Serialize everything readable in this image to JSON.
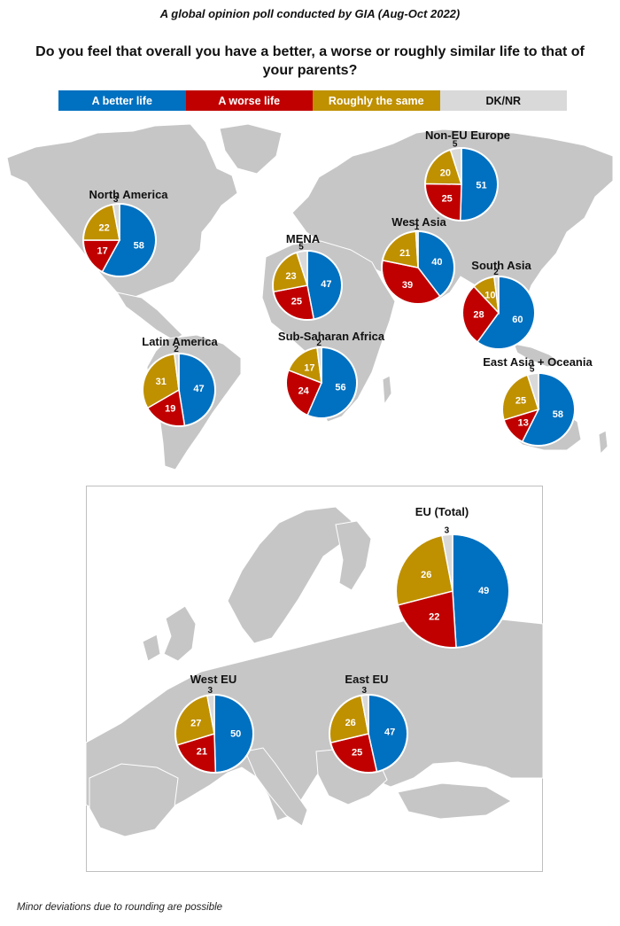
{
  "subtitle": "A global opinion poll conducted by GIA (Aug-Oct 2022)",
  "question": "Do you feel that overall you have a better, a worse or roughly similar life to that of your parents?",
  "footnote": "Minor deviations due to rounding are possible",
  "colors": {
    "better": "#0070c0",
    "worse": "#c00000",
    "same": "#bf9000",
    "dknr": "#d9d9d9",
    "land": "#c6c6c6",
    "sea": "#ffffff"
  },
  "legend": [
    {
      "key": "better",
      "label": "A better life",
      "text_color": "#ffffff"
    },
    {
      "key": "worse",
      "label": "A worse life",
      "text_color": "#ffffff"
    },
    {
      "key": "same",
      "label": "Roughly the same",
      "text_color": "#ffffff"
    },
    {
      "key": "dknr",
      "label": "DK/NR",
      "text_color": "#111111"
    }
  ],
  "chart_data": {
    "type": "pie",
    "category_order": [
      "A better life",
      "A worse life",
      "Roughly the same",
      "DK/NR"
    ],
    "regions": [
      {
        "name": "North America",
        "values": [
          58,
          17,
          22,
          3
        ]
      },
      {
        "name": "Latin America",
        "values": [
          47,
          19,
          31,
          2
        ]
      },
      {
        "name": "MENA",
        "values": [
          47,
          25,
          23,
          5
        ]
      },
      {
        "name": "Sub-Saharan Africa",
        "values": [
          56,
          24,
          17,
          2
        ]
      },
      {
        "name": "Non-EU Europe",
        "values": [
          51,
          25,
          20,
          5
        ]
      },
      {
        "name": "West Asia",
        "values": [
          40,
          39,
          21,
          1
        ]
      },
      {
        "name": "South Asia",
        "values": [
          60,
          28,
          10,
          2
        ]
      },
      {
        "name": "East Asia + Oceania",
        "values": [
          58,
          13,
          25,
          5
        ]
      },
      {
        "name": "EU (Total)",
        "values": [
          49,
          22,
          26,
          3
        ]
      },
      {
        "name": "West EU",
        "values": [
          50,
          21,
          27,
          3
        ]
      },
      {
        "name": "East EU",
        "values": [
          47,
          25,
          26,
          3
        ]
      }
    ]
  }
}
